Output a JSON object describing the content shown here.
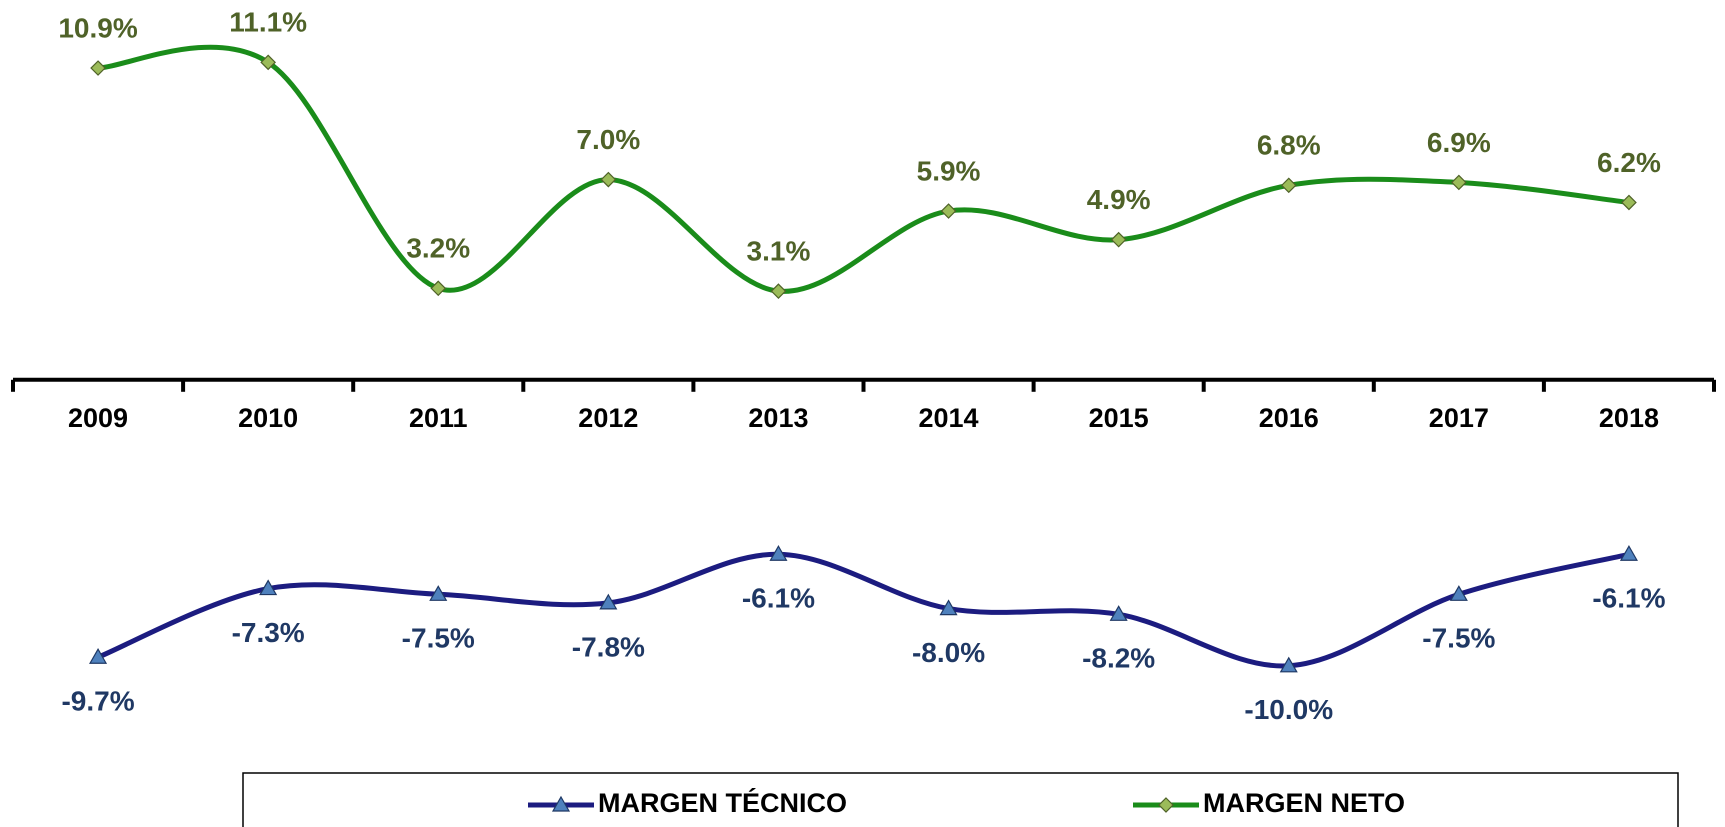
{
  "chart_data": {
    "type": "line",
    "categories": [
      "2009",
      "2010",
      "2011",
      "2012",
      "2013",
      "2014",
      "2015",
      "2016",
      "2017",
      "2018"
    ],
    "series": [
      {
        "name": "MARGEN TÉCNICO",
        "color": "#1c1c80",
        "marker_color": "#4f81bd",
        "label_color": "#1f3864",
        "values": [
          -9.7,
          -7.3,
          -7.5,
          -7.8,
          -6.1,
          -8.0,
          -8.2,
          -10.0,
          -7.5,
          -6.1
        ],
        "value_labels": [
          "-9.7%",
          "-7.3%",
          "-7.5%",
          "-7.8%",
          "-6.1%",
          "-8.0%",
          "-8.2%",
          "-10.0%",
          "-7.5%",
          "-6.1%"
        ]
      },
      {
        "name": "MARGEN NETO",
        "color": "#1a8c1a",
        "marker_color": "#9bbb59",
        "label_color": "#4f6228",
        "values": [
          10.9,
          11.1,
          3.2,
          7.0,
          3.1,
          5.9,
          4.9,
          6.8,
          6.9,
          6.2
        ],
        "value_labels": [
          "10.9%",
          "11.1%",
          "3.2%",
          "7.0%",
          "3.1%",
          "5.9%",
          "4.9%",
          "6.8%",
          "6.9%",
          "6.2%"
        ]
      }
    ],
    "ylim": [
      -12,
      13
    ],
    "grid": false,
    "legend": "bottom"
  }
}
